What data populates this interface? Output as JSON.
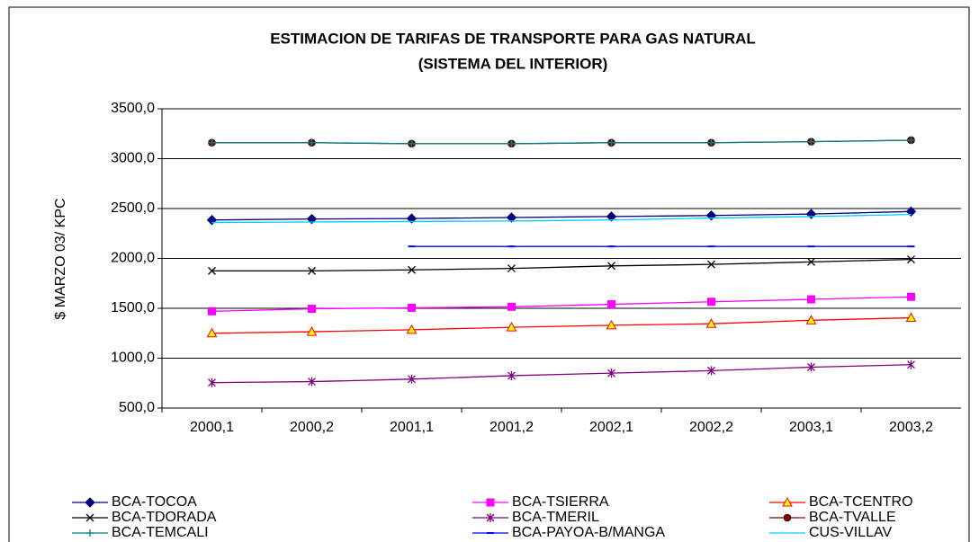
{
  "chart_data": {
    "type": "line",
    "title": "ESTIMACION DE TARIFAS DE TRANSPORTE PARA GAS NATURAL",
    "subtitle": "(SISTEMA DEL INTERIOR)",
    "y_label": "$ MARZO 03/ KPC",
    "categories": [
      "2000,1",
      "2000,2",
      "2001,1",
      "2001,2",
      "2002,1",
      "2002,2",
      "2003,1",
      "2003,2"
    ],
    "ylim": [
      500,
      3500
    ],
    "yticks": [
      {
        "value": 500,
        "label": "500,0"
      },
      {
        "value": 1000,
        "label": "1000,0"
      },
      {
        "value": 1500,
        "label": "1500,0"
      },
      {
        "value": 2000,
        "label": "2000,0"
      },
      {
        "value": 2500,
        "label": "2500,0"
      },
      {
        "value": 3000,
        "label": "3000,0"
      },
      {
        "value": 3500,
        "label": "3500,0"
      }
    ],
    "grid": true,
    "series": [
      {
        "name": "BCA-TOCOA",
        "color": "#000080",
        "marker": "diamond",
        "values": [
          2385,
          2395,
          2400,
          2410,
          2420,
          2430,
          2445,
          2470
        ]
      },
      {
        "name": "BCA-TSIERRA",
        "color": "#FF00FF",
        "marker": "square",
        "values": [
          1470,
          1495,
          1505,
          1515,
          1540,
          1565,
          1590,
          1615
        ]
      },
      {
        "name": "BCA-TCENTRO",
        "color": "#FF0000",
        "marker": "triangle",
        "marker_fill": "#FFFF00",
        "values": [
          1250,
          1265,
          1285,
          1310,
          1330,
          1345,
          1380,
          1405
        ]
      },
      {
        "name": "BCA-TDORADA",
        "color": "#000000",
        "marker": "x",
        "values": [
          1875,
          1875,
          1885,
          1900,
          1925,
          1940,
          1965,
          1990
        ]
      },
      {
        "name": "BCA-TMERIL",
        "color": "#800080",
        "marker": "star",
        "values": [
          755,
          765,
          790,
          825,
          850,
          875,
          910,
          935
        ]
      },
      {
        "name": "BCA-TVALLE",
        "color": "#800000",
        "marker": "circle",
        "values": [
          3160,
          3160,
          3150,
          3150,
          3160,
          3160,
          3170,
          3185
        ]
      },
      {
        "name": "BCA-TEMCALI",
        "color": "#008080",
        "marker": "plus",
        "values": [
          3160,
          3160,
          3150,
          3150,
          3160,
          3160,
          3170,
          3185
        ]
      },
      {
        "name": "BCA-PAYOA-B/MANGA",
        "color": "#0000FF",
        "marker": "dash",
        "values": [
          null,
          null,
          2120,
          2120,
          2120,
          2120,
          2120,
          2120
        ]
      },
      {
        "name": "CUS-VILLAV",
        "color": "#00CCFF",
        "marker": "none",
        "values": [
          2360,
          2365,
          2370,
          2375,
          2385,
          2405,
          2420,
          2440
        ]
      }
    ]
  }
}
